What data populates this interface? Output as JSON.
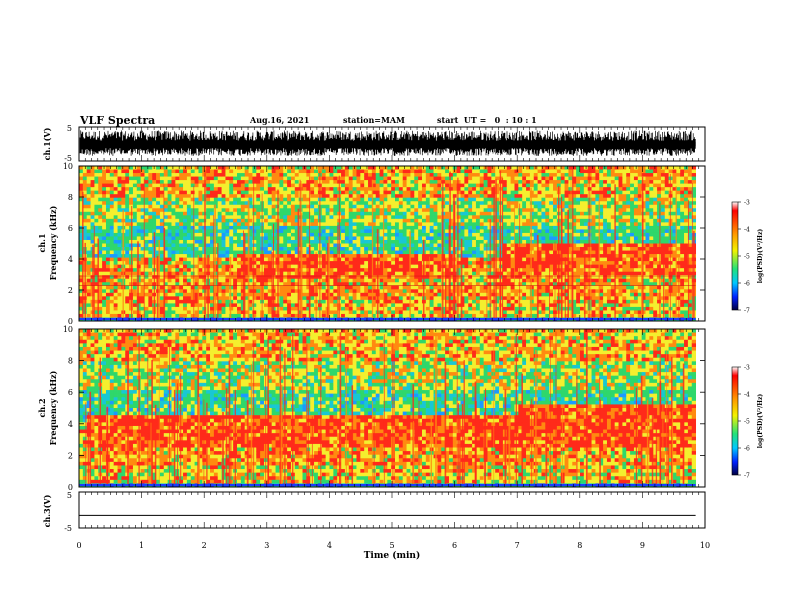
{
  "header": {
    "title": "VLF Spectra",
    "date": "Aug.16, 2021",
    "station": "station=MAM",
    "start_ut": "start  UT =   0  : 10 : 1"
  },
  "colors": {
    "frame": "#000000",
    "red": "#ff2a1a",
    "orange": "#ff8a10",
    "yellow": "#f4ef2e",
    "green": "#2fd76b",
    "cyan": "#19c7d4",
    "blue": "#1b3cff"
  },
  "chart_data": [
    {
      "type": "line",
      "id": "ch1_waveform",
      "ylabel": "ch.1(V)",
      "ylim": [
        -5,
        5
      ],
      "yticklabels": [
        "5",
        "-5"
      ],
      "xlim": [
        0,
        10
      ],
      "data_end_min": 9.85,
      "description_values": {
        "envelope_min": -3.5,
        "envelope_max": 4.0
      }
    },
    {
      "type": "heatmap",
      "id": "ch1_spectrogram",
      "ylabel_line1": "ch.1",
      "ylabel_line2": "Frequency (kHz)",
      "ylim": [
        0,
        10
      ],
      "yticklabels": [
        "0",
        "2",
        "4",
        "6",
        "8",
        "10"
      ],
      "xlim": [
        0,
        10
      ],
      "data_end_min": 9.85,
      "colorbar": {
        "label": "log(PSD)(V²/Hz)",
        "range": [
          -7,
          -3
        ],
        "ticklabels": [
          "-3",
          "-4",
          "-5",
          "-6",
          "-7"
        ]
      },
      "bands": [
        {
          "kind": "red-band",
          "x": [
            2.5,
            6.0
          ],
          "f": [
            2.8,
            4.3
          ]
        },
        {
          "kind": "red-band",
          "x": [
            6.8,
            9.85
          ],
          "f": [
            3.0,
            5.0
          ]
        },
        {
          "kind": "red-line",
          "f": 2.9
        },
        {
          "kind": "red-line",
          "f": 2.3
        }
      ]
    },
    {
      "type": "heatmap",
      "id": "ch2_spectrogram",
      "ylabel_line1": "ch.2",
      "ylabel_line2": "Frequency (kHz)",
      "ylim": [
        0,
        10
      ],
      "yticklabels": [
        "0",
        "2",
        "4",
        "6",
        "8",
        "10"
      ],
      "xlim": [
        0,
        10
      ],
      "data_end_min": 9.85,
      "colorbar": {
        "label": "log(PSD)(V²/Hz)",
        "range": [
          -7,
          -3
        ],
        "ticklabels": [
          "-3",
          "-4",
          "-5",
          "-6",
          "-7"
        ]
      },
      "bands": [
        {
          "kind": "red-band",
          "x": [
            0.1,
            9.85
          ],
          "f": [
            2.5,
            4.5
          ]
        },
        {
          "kind": "red-band",
          "x": [
            7.0,
            9.85
          ],
          "f": [
            3.0,
            5.2
          ]
        }
      ]
    },
    {
      "type": "line",
      "id": "ch3_waveform",
      "ylabel": "ch.3(V)",
      "ylim": [
        -5,
        5
      ],
      "yticklabels": [
        "5",
        "-5"
      ],
      "xlim": [
        0,
        10
      ],
      "x": [
        0,
        9.85
      ],
      "y": [
        -1.5,
        -1.5
      ]
    }
  ],
  "xaxis": {
    "label": "Time (min)",
    "ticklabels": [
      "0",
      "1",
      "2",
      "3",
      "4",
      "5",
      "6",
      "7",
      "8",
      "9",
      "10"
    ]
  }
}
